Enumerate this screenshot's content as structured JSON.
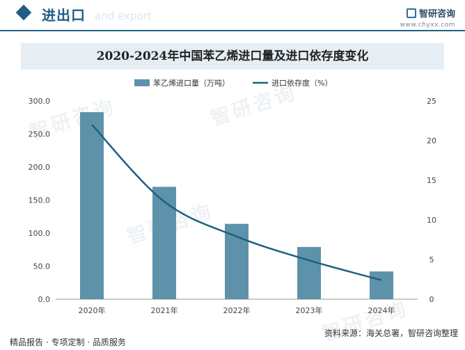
{
  "header": {
    "section_title": "进出口",
    "section_subtitle": "and export",
    "brand": "智研咨询",
    "brand_url": "www.chyxx.com"
  },
  "watermark_text": "智研咨询",
  "chart_data": {
    "type": "bar+line",
    "title": "2020-2024年中国苯乙烯进口量及进口依存度变化",
    "categories": [
      "2020年",
      "2021年",
      "2022年",
      "2023年",
      "2024年"
    ],
    "series": [
      {
        "name": "苯乙烯进口量（万吨）",
        "type": "bar",
        "axis": "left",
        "color": "#5e92aa",
        "values": [
          283,
          170,
          114,
          79,
          42
        ]
      },
      {
        "name": "进口依存度（%）",
        "type": "line",
        "axis": "right",
        "color": "#1b607f",
        "values": [
          22.0,
          12.3,
          7.9,
          4.9,
          2.4
        ]
      }
    ],
    "y_left": {
      "min": 0,
      "max": 300,
      "ticks": [
        "0.0",
        "50.0",
        "100.0",
        "150.0",
        "200.0",
        "250.0",
        "300.0"
      ]
    },
    "y_right": {
      "min": 0,
      "max": 25,
      "ticks": [
        "0",
        "5",
        "10",
        "15",
        "20",
        "25"
      ]
    },
    "legend_position": "top",
    "grid": false
  },
  "footer": {
    "left": "精品报告 · 专项定制 · 品质服务",
    "right": "资料来源：海关总署，智研咨询整理"
  }
}
